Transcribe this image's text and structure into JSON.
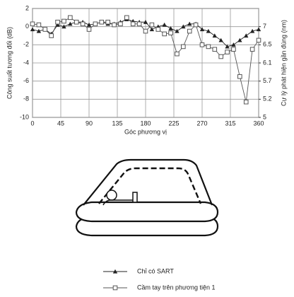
{
  "chart_data": {
    "type": "line",
    "x_label": "Góc phương vị",
    "y_label": "Công suất tương đối (dB)",
    "y2_label": "Cự lý phát hiện gần đúng (nm)",
    "x": [
      0,
      10,
      20,
      30,
      40,
      50,
      60,
      70,
      80,
      90,
      100,
      110,
      120,
      130,
      140,
      150,
      160,
      170,
      180,
      190,
      200,
      210,
      220,
      230,
      240,
      250,
      260,
      270,
      280,
      290,
      300,
      310,
      320,
      330,
      340,
      350,
      360
    ],
    "xlim": [
      0,
      360
    ],
    "xticks": [
      0,
      45,
      90,
      135,
      180,
      225,
      270,
      315,
      360
    ],
    "ylim": [
      -10,
      2
    ],
    "yticks": [
      2,
      0,
      -2,
      -4,
      -6,
      -8,
      -10
    ],
    "y2ticks": [
      {
        "value": 7,
        "label": "7"
      },
      {
        "value": 6.5,
        "label": "6.5"
      },
      {
        "value": 6.1,
        "label": "6.1"
      },
      {
        "value": 5.7,
        "label": "5.7"
      },
      {
        "value": 5.2,
        "label": "5.2"
      },
      {
        "value": 5,
        "label": "5"
      }
    ],
    "grid": true,
    "series": [
      {
        "name": "Chỉ có SART",
        "color": "#222",
        "marker": "triangle",
        "values": [
          -0.3,
          -0.5,
          -0.3,
          -0.8,
          0.2,
          0,
          0.3,
          0.5,
          0.5,
          0.2,
          0.3,
          0.5,
          0.3,
          0.3,
          0.5,
          0.8,
          0.6,
          0.5,
          0.5,
          -0.3,
          0,
          0.2,
          -0.2,
          -0.5,
          0,
          0.3,
          0.3,
          -0.3,
          -0.5,
          -1.0,
          -1.5,
          -2.2,
          -2.0,
          -1.5,
          -1.0,
          -0.5,
          -0.3
        ]
      },
      {
        "name": "Cầm tay trên phương tiện 1",
        "color": "#555",
        "marker": "square",
        "values": [
          0.3,
          0.2,
          -0.3,
          -1.0,
          0.5,
          0.6,
          1.0,
          0.5,
          0.3,
          -0.3,
          0.3,
          0.5,
          0.5,
          0.2,
          0.3,
          1.0,
          0.3,
          0.3,
          -0.5,
          0.2,
          -0.3,
          -0.8,
          -0.7,
          -3.0,
          -2.2,
          -0.5,
          0.2,
          -2.0,
          -2.2,
          -2.5,
          -3.3,
          -2.8,
          -2.5,
          -5.5,
          -8.3,
          -2.5,
          -1.5
        ]
      }
    ]
  }
}
